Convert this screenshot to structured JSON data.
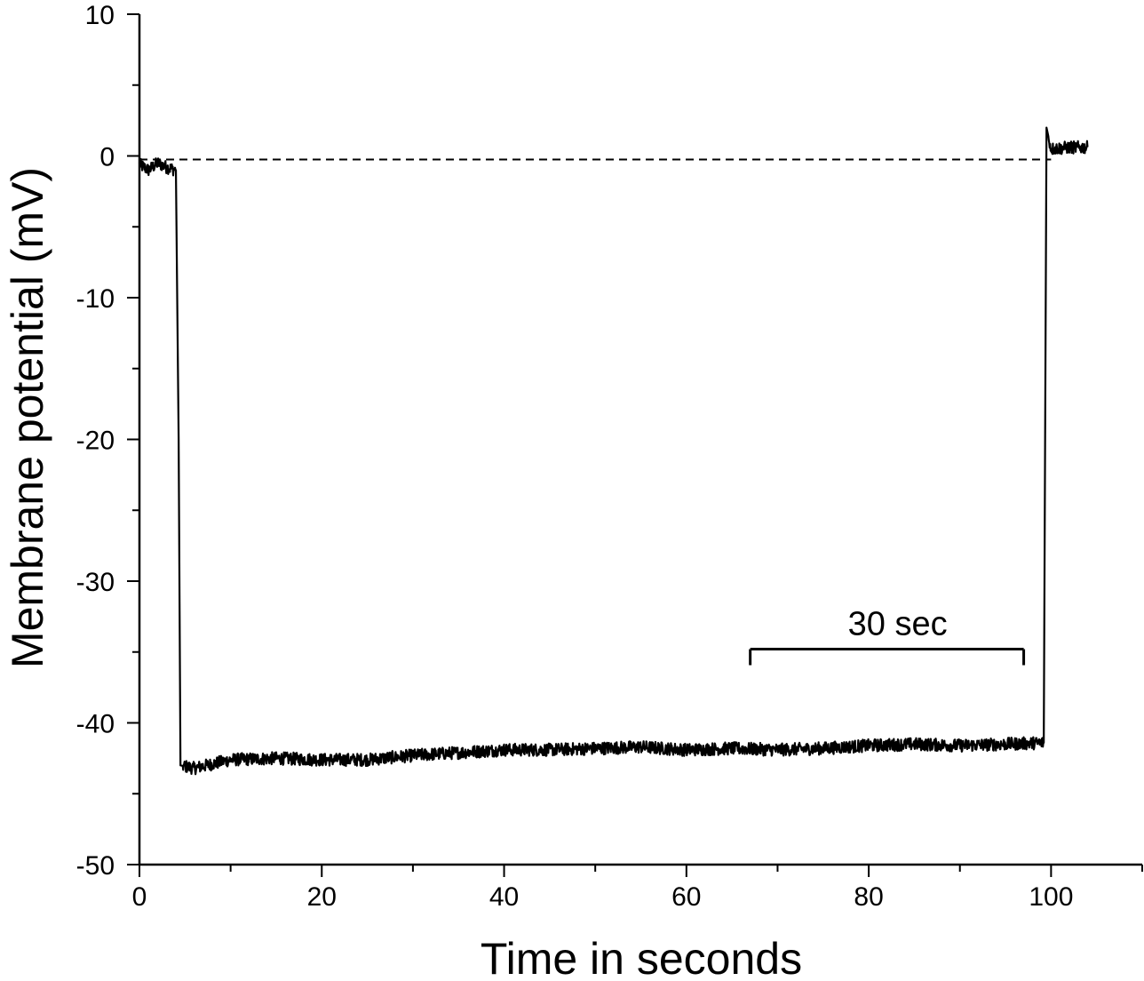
{
  "chart_data": {
    "type": "line",
    "title": "",
    "xlabel": "Time in seconds",
    "ylabel": "Membrane potential (mV)",
    "xlim": [
      0,
      110
    ],
    "ylim": [
      -50,
      10
    ],
    "x_ticks": [
      0,
      20,
      40,
      60,
      80,
      100
    ],
    "x_tick_labels": [
      "0",
      "20",
      "40",
      "60",
      "80",
      "100"
    ],
    "y_ticks": [
      10,
      0,
      -10,
      -20,
      -30,
      -40,
      -50
    ],
    "y_tick_labels": [
      "10",
      "0",
      "-10",
      "-20",
      "-30",
      "-40",
      "-50"
    ],
    "x_minor_step": 10,
    "y_minor_step": 5,
    "grid": false,
    "legend": "none",
    "colors": {
      "trace": "#000000",
      "axis": "#000000",
      "background": "#ffffff"
    },
    "reference_line": {
      "y": 0,
      "x_range": [
        0,
        100
      ],
      "style": "dashed"
    },
    "scale_bar": {
      "label": "30 sec",
      "x_start": 67,
      "x_end": 97,
      "y": -34.8
    },
    "series": [
      {
        "values": [
          {
            "x": 0,
            "y": -0.6
          },
          {
            "x": 1,
            "y": -1.0
          },
          {
            "x": 2,
            "y": -0.5
          },
          {
            "x": 3,
            "y": -0.8
          },
          {
            "x": 4.0,
            "y": -1.0
          },
          {
            "x": 4.3,
            "y": -20
          },
          {
            "x": 4.5,
            "y": -43.0
          },
          {
            "x": 6,
            "y": -43.2
          },
          {
            "x": 8,
            "y": -42.9
          },
          {
            "x": 10,
            "y": -42.6
          },
          {
            "x": 15,
            "y": -42.5
          },
          {
            "x": 20,
            "y": -42.6
          },
          {
            "x": 25,
            "y": -42.6
          },
          {
            "x": 30,
            "y": -42.3
          },
          {
            "x": 35,
            "y": -42.1
          },
          {
            "x": 40,
            "y": -41.9
          },
          {
            "x": 45,
            "y": -41.9
          },
          {
            "x": 50,
            "y": -41.8
          },
          {
            "x": 55,
            "y": -41.7
          },
          {
            "x": 60,
            "y": -41.9
          },
          {
            "x": 65,
            "y": -41.8
          },
          {
            "x": 70,
            "y": -41.9
          },
          {
            "x": 75,
            "y": -41.8
          },
          {
            "x": 80,
            "y": -41.6
          },
          {
            "x": 85,
            "y": -41.5
          },
          {
            "x": 90,
            "y": -41.6
          },
          {
            "x": 95,
            "y": -41.5
          },
          {
            "x": 99.2,
            "y": -41.4
          },
          {
            "x": 99.5,
            "y": 2.0
          },
          {
            "x": 100,
            "y": 0.5
          },
          {
            "x": 102,
            "y": 0.6
          },
          {
            "x": 104,
            "y": 0.6
          }
        ]
      }
    ]
  }
}
